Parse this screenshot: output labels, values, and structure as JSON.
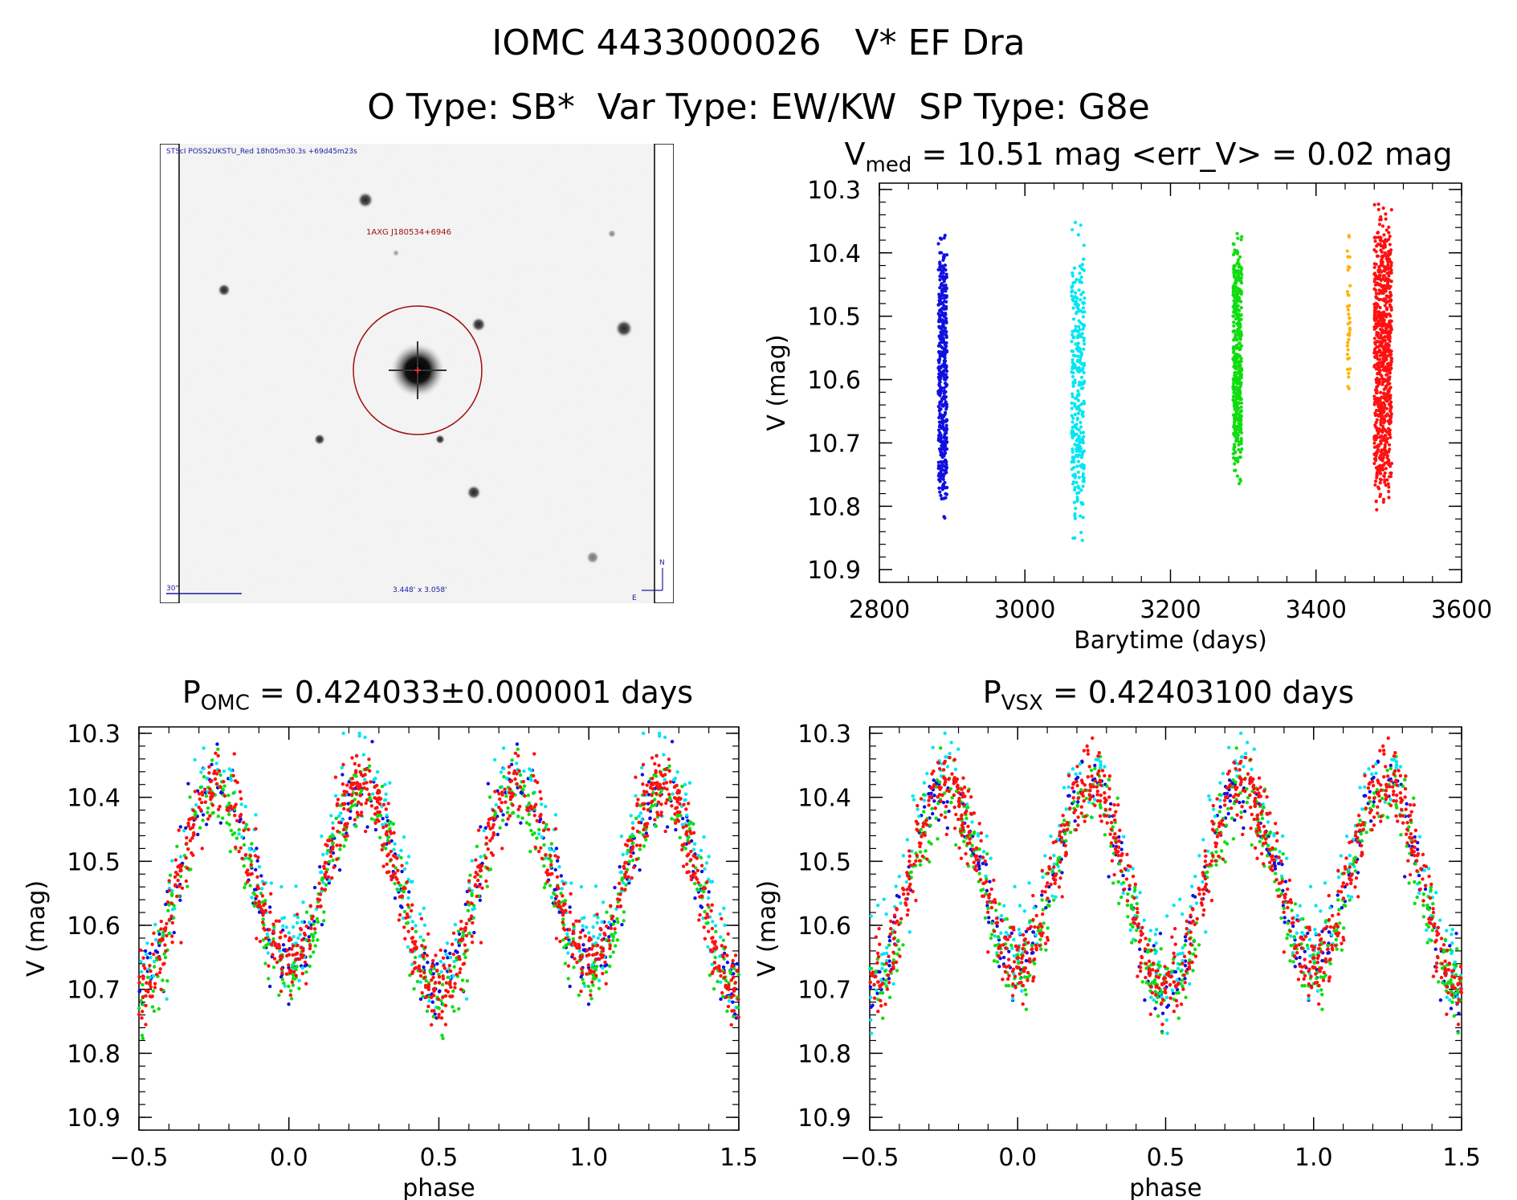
{
  "header": {
    "line1": "IOMC 4433000026   V* EF Dra",
    "line2": "O Type: SB*  Var Type: EW/KW  SP Type: G8e"
  },
  "finder": {
    "header_text": "STScI POSS2UKSTU_Red 18h05m30.3s +69d45m23s",
    "target_label": "1AXG J180534+6946",
    "scale_label": "30\"",
    "size_label": "3.448' x 3.058'",
    "north_label": "N",
    "east_label": "E"
  },
  "colors": {
    "blue": "#1010e0",
    "cyan": "#00e6f2",
    "green": "#10dd10",
    "orange": "#ffb300",
    "red": "#ff1010",
    "circle": "#a01010"
  },
  "panels": {
    "time": {
      "title_main": "V",
      "title_sub": "med",
      "title_rest": " = 10.51 mag <err_V> = 0.02 mag",
      "xlabel": "Barytime (days)",
      "ylabel": "V (mag)"
    },
    "phase_omc": {
      "title_main": "P",
      "title_sub": "OMC",
      "title_rest": " = 0.424033±0.000001 days",
      "xlabel": "phase",
      "ylabel": "V (mag)"
    },
    "phase_vsx": {
      "title_main": "P",
      "title_sub": "VSX",
      "title_rest": " = 0.42403100 days",
      "xlabel": "phase",
      "ylabel": "V (mag)"
    }
  },
  "chart_data": [
    {
      "type": "scatter",
      "title": "Vmed = 10.51 mag <err_V> = 0.02 mag",
      "xlabel": "Barytime (days)",
      "ylabel": "V (mag)",
      "xlim": [
        2800,
        3600
      ],
      "ylim": [
        10.92,
        10.29
      ],
      "y_inverted": true,
      "xticks": [
        "2800",
        "3000",
        "3200",
        "3400",
        "3600"
      ],
      "yticks": [
        "10.3",
        "10.4",
        "10.5",
        "10.6",
        "10.7",
        "10.8",
        "10.9"
      ],
      "series": [
        {
          "color": "blue",
          "x_center": 2887,
          "x_spread": 6,
          "v_min": 10.36,
          "v_max": 10.83,
          "n": 420
        },
        {
          "color": "cyan",
          "x_center": 3073,
          "x_spread": 9,
          "v_min": 10.35,
          "v_max": 10.86,
          "n": 300
        },
        {
          "color": "green",
          "x_center": 3292,
          "x_spread": 6,
          "v_min": 10.36,
          "v_max": 10.77,
          "n": 420
        },
        {
          "color": "orange",
          "x_center": 3445,
          "x_spread": 2,
          "v_min": 10.37,
          "v_max": 10.62,
          "n": 40
        },
        {
          "color": "red",
          "x_center": 3492,
          "x_spread": 12,
          "v_min": 10.32,
          "v_max": 10.81,
          "n": 750
        }
      ]
    },
    {
      "type": "scatter",
      "title": "POMC = 0.424033±0.000001 days",
      "xlabel": "phase",
      "ylabel": "V (mag)",
      "xlim": [
        -0.5,
        1.5
      ],
      "ylim": [
        10.92,
        10.29
      ],
      "y_inverted": true,
      "xticks": [
        "-0.5",
        "0.0",
        "0.5",
        "1.0",
        "1.5"
      ],
      "yticks": [
        "10.3",
        "10.4",
        "10.5",
        "10.6",
        "10.7",
        "10.8",
        "10.9"
      ],
      "light_curve": {
        "mean": 10.53,
        "amp1": 0.15,
        "amp2": -0.02,
        "min_phase": 0.0,
        "scatter": 0.03
      },
      "series_colors": [
        "blue",
        "cyan",
        "green",
        "red"
      ]
    },
    {
      "type": "scatter",
      "title": "PVSX = 0.42403100 days",
      "xlabel": "phase",
      "ylabel": "V (mag)",
      "xlim": [
        -0.5,
        1.5
      ],
      "ylim": [
        10.92,
        10.29
      ],
      "y_inverted": true,
      "xticks": [
        "-0.5",
        "0.0",
        "0.5",
        "1.0",
        "1.5"
      ],
      "yticks": [
        "10.3",
        "10.4",
        "10.5",
        "10.6",
        "10.7",
        "10.8",
        "10.9"
      ],
      "light_curve": {
        "mean": 10.53,
        "amp1": 0.15,
        "amp2": -0.02,
        "min_phase": 0.0,
        "scatter": 0.03
      },
      "series_colors": [
        "blue",
        "cyan",
        "green",
        "red"
      ]
    }
  ]
}
